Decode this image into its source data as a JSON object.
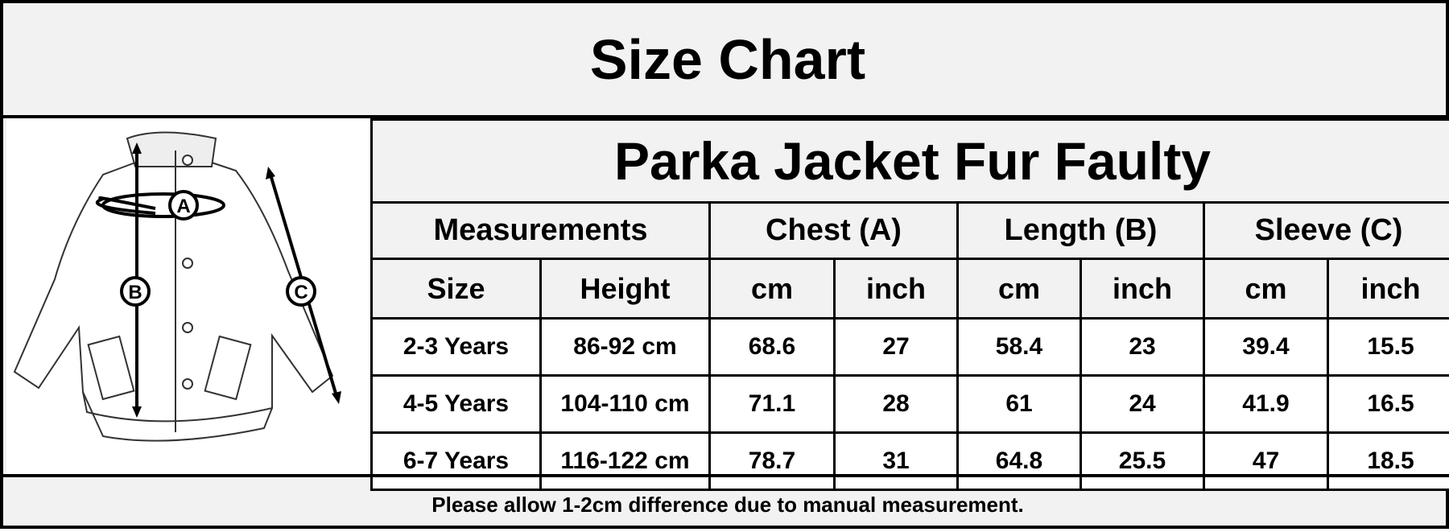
{
  "title": "Size Chart",
  "product": "Parka Jacket Fur Faulty",
  "diagram": {
    "labels": [
      "A",
      "B",
      "C"
    ]
  },
  "table": {
    "groups": [
      "Measurements",
      "Chest (A)",
      "Length (B)",
      "Sleeve (C)"
    ],
    "subheaders": [
      "Size",
      "Height",
      "cm",
      "inch",
      "cm",
      "inch",
      "cm",
      "inch"
    ],
    "rows": [
      [
        "2-3 Years",
        "86-92 cm",
        "68.6",
        "27",
        "58.4",
        "23",
        "39.4",
        "15.5"
      ],
      [
        "4-5 Years",
        "104-110 cm",
        "71.1",
        "28",
        "61",
        "24",
        "41.9",
        "16.5"
      ],
      [
        "6-7 Years",
        "116-122 cm",
        "78.7",
        "31",
        "64.8",
        "25.5",
        "47",
        "18.5"
      ]
    ]
  },
  "footer": "Please allow 1-2cm difference due to manual measurement."
}
